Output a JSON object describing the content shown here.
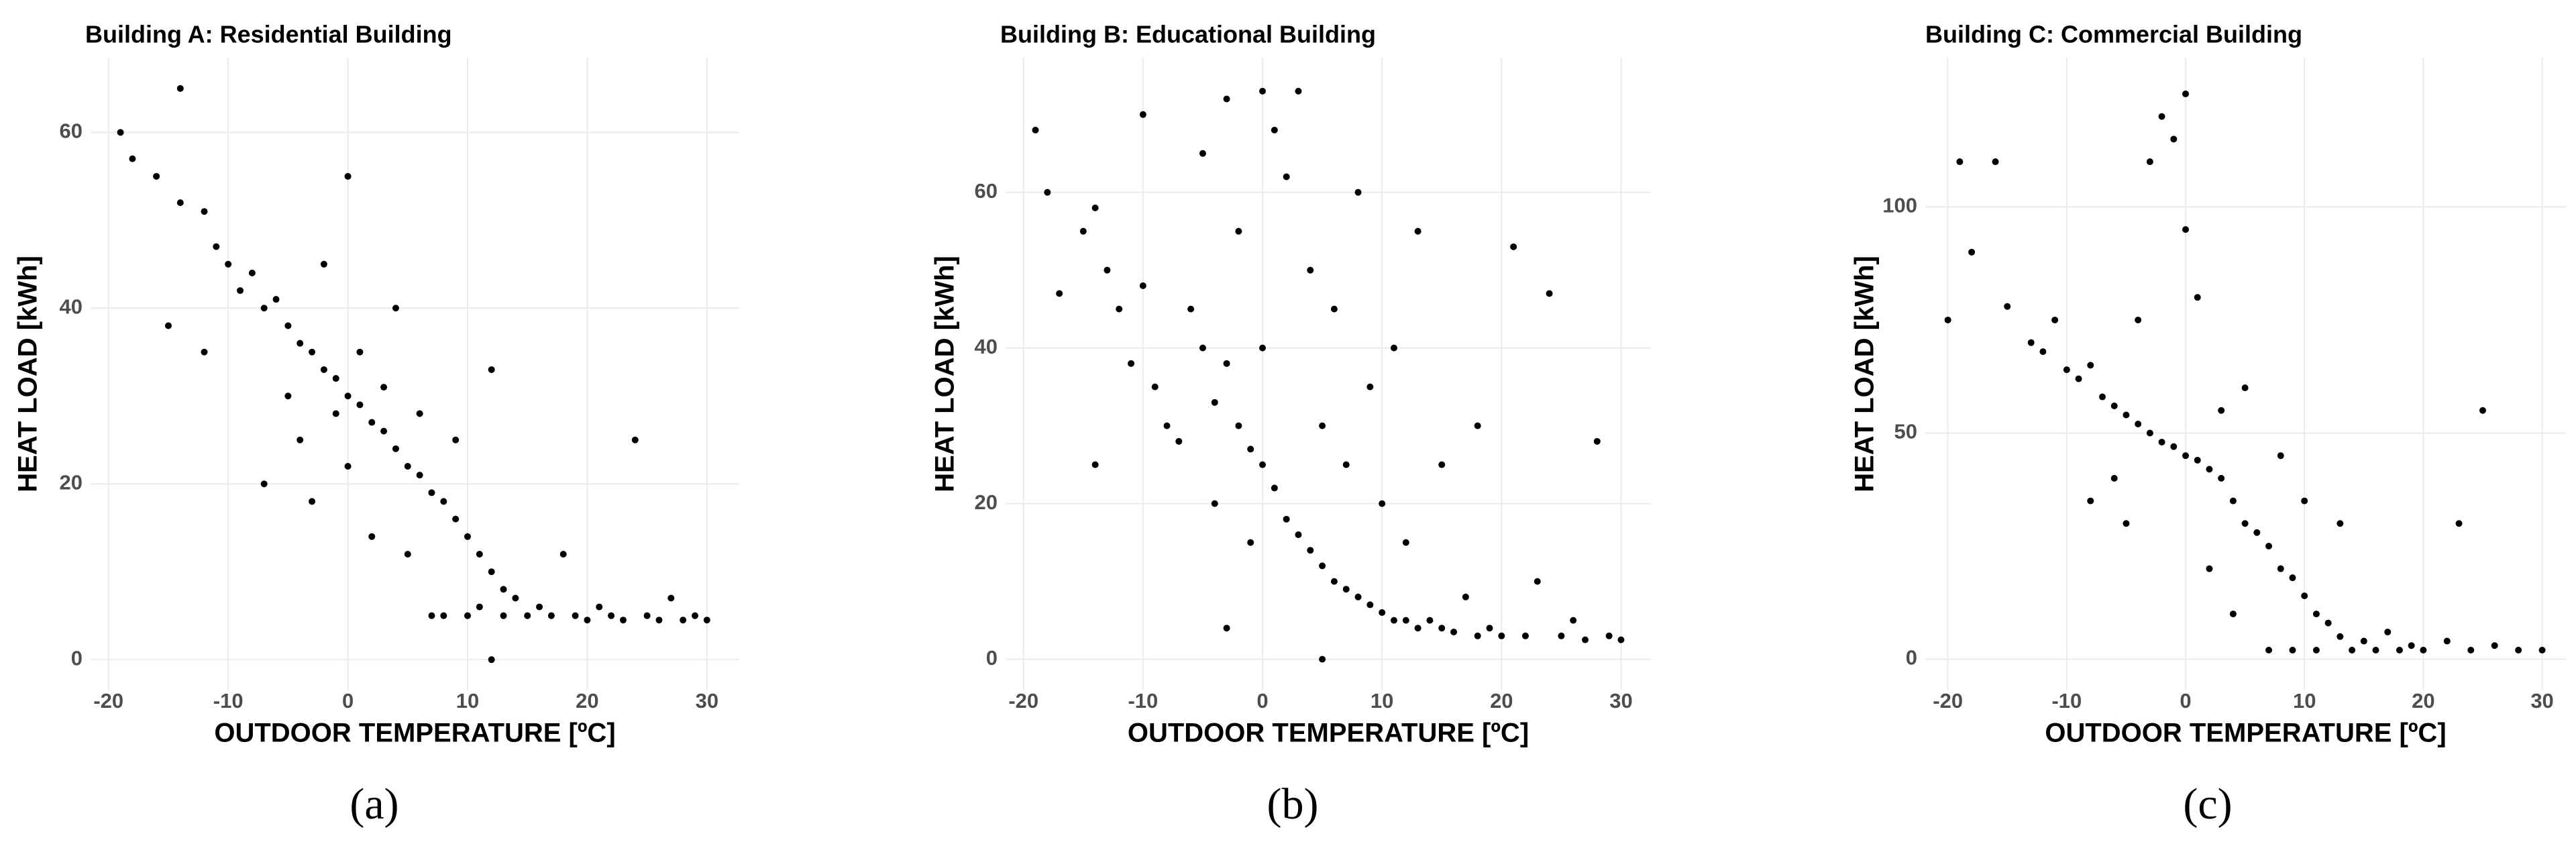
{
  "chart_data": [
    {
      "type": "scatter",
      "title": "Building A:  Residential Building",
      "x_label": "OUTDOOR TEMPERATURE [ºC]",
      "y_label": "HEAT LOAD [kWh]",
      "caption": "(a)",
      "color": "#000000",
      "grid": true,
      "xlim": [
        -21.5,
        32.7
      ],
      "ylim": [
        -3.5,
        68.5
      ],
      "xticks": [
        -20,
        -10,
        0,
        10,
        20,
        30
      ],
      "yticks": [
        0,
        20,
        40,
        60
      ],
      "x": [
        -19,
        -18,
        -16,
        -14,
        -12,
        -11,
        -10,
        -9,
        -8,
        -7,
        -6,
        -5,
        -5,
        -4,
        -4,
        -3,
        -3,
        -2,
        -2,
        -1,
        -1,
        0,
        0,
        0,
        1,
        1,
        2,
        2,
        3,
        3,
        4,
        4,
        5,
        5,
        6,
        6,
        7,
        7,
        8,
        8,
        9,
        9,
        10,
        10,
        11,
        11,
        12,
        12,
        13,
        13,
        14,
        15,
        16,
        17,
        18,
        19,
        20,
        21,
        22,
        23,
        24,
        25,
        26,
        27,
        28,
        29,
        30,
        -15,
        -12,
        -7,
        12,
        -14
      ],
      "values": [
        60,
        57,
        55,
        52,
        51,
        47,
        45,
        42,
        44,
        40,
        41,
        38,
        30,
        36,
        25,
        35,
        18,
        33,
        45,
        32,
        28,
        30,
        22,
        55,
        29,
        35,
        27,
        14,
        26,
        31,
        24,
        40,
        22,
        12,
        21,
        28,
        19,
        5,
        18,
        5,
        16,
        25,
        14,
        5,
        12,
        6,
        10,
        33,
        8,
        5,
        7,
        5,
        6,
        5,
        12,
        5,
        4.5,
        6,
        5,
        4.5,
        25,
        5,
        4.5,
        7,
        4.5,
        5,
        4.5,
        38,
        35,
        20,
        0,
        65
      ]
    },
    {
      "type": "scatter",
      "title": "Building B:   Educational Building",
      "x_label": "OUTDOOR TEMPERATURE [ºC]",
      "y_label": "HEAT LOAD [kWh]",
      "caption": "(b)",
      "color": "#000000",
      "grid": true,
      "xlim": [
        -21.5,
        32.5
      ],
      "ylim": [
        -4,
        77.3
      ],
      "xticks": [
        -20,
        -10,
        0,
        10,
        20,
        30
      ],
      "yticks": [
        0,
        20,
        40,
        60
      ],
      "x": [
        -19,
        -18,
        -17,
        -15,
        -14,
        -13,
        -12,
        -11,
        -10,
        -9,
        -8,
        -7,
        -6,
        -5,
        -5,
        -4,
        -4,
        -3,
        -3,
        -2,
        -2,
        -1,
        -1,
        0,
        0,
        0,
        1,
        1,
        2,
        2,
        3,
        3,
        4,
        4,
        5,
        5,
        5,
        6,
        6,
        7,
        7,
        8,
        8,
        9,
        9,
        10,
        10,
        11,
        11,
        12,
        12,
        13,
        13,
        14,
        15,
        15,
        16,
        17,
        18,
        18,
        19,
        20,
        21,
        22,
        23,
        24,
        25,
        26,
        27,
        28,
        29,
        30,
        -10,
        -14,
        -3
      ],
      "values": [
        68,
        60,
        47,
        55,
        58,
        50,
        45,
        38,
        48,
        35,
        30,
        28,
        45,
        40,
        65,
        33,
        20,
        38,
        72,
        30,
        55,
        27,
        15,
        25,
        73,
        40,
        22,
        68,
        18,
        62,
        16,
        73,
        14,
        50,
        12,
        30,
        0,
        10,
        45,
        9,
        25,
        8,
        60,
        7,
        35,
        6,
        20,
        5,
        40,
        5,
        15,
        4,
        55,
        5,
        4,
        25,
        3.5,
        8,
        3,
        30,
        4,
        3,
        53,
        3,
        10,
        47,
        3,
        5,
        2.5,
        28,
        3,
        2.5,
        70,
        25,
        4
      ]
    },
    {
      "type": "scatter",
      "title": "Building C: Commercial Building",
      "x_label": "OUTDOOR TEMPERATURE [ºC]",
      "y_label": "HEAT LOAD [kWh]",
      "caption": "(c)",
      "color": "#000000",
      "grid": true,
      "xlim": [
        -21.9,
        32
      ],
      "ylim": [
        -6.9,
        133
      ],
      "xticks": [
        -20,
        -10,
        0,
        10,
        20,
        30
      ],
      "yticks": [
        0,
        50,
        100
      ],
      "x": [
        -19,
        -18,
        -16,
        -15,
        -13,
        -12,
        -11,
        -10,
        -9,
        -8,
        -7,
        -6,
        -6,
        -5,
        -5,
        -4,
        -4,
        -3,
        -3,
        -2,
        -2,
        -1,
        -1,
        0,
        0,
        0,
        1,
        1,
        2,
        2,
        3,
        3,
        4,
        5,
        5,
        6,
        7,
        7,
        8,
        8,
        9,
        9,
        10,
        10,
        11,
        11,
        12,
        13,
        13,
        14,
        15,
        16,
        17,
        18,
        19,
        20,
        22,
        23,
        24,
        25,
        26,
        28,
        30,
        -20,
        -8,
        4
      ],
      "values": [
        110,
        90,
        110,
        78,
        70,
        68,
        75,
        64,
        62,
        65,
        58,
        56,
        40,
        54,
        30,
        52,
        75,
        50,
        110,
        120,
        48,
        47,
        115,
        45,
        95,
        125,
        44,
        80,
        42,
        20,
        40,
        55,
        35,
        30,
        60,
        28,
        25,
        2,
        20,
        45,
        18,
        2,
        14,
        35,
        10,
        2,
        8,
        5,
        30,
        2,
        4,
        2,
        6,
        2,
        3,
        2,
        4,
        30,
        2,
        55,
        3,
        2,
        2,
        75,
        35,
        10
      ]
    }
  ]
}
